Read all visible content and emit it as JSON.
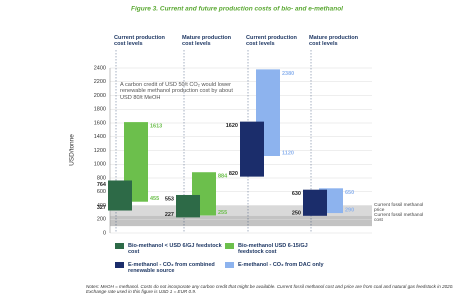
{
  "chart_data": {
    "type": "range-bar",
    "title": "Figure 3. Current and future production costs of bio- and e-methanol",
    "y_label": "USD/tonne",
    "categories": [
      "Current production cost levels",
      "Mature production cost levels",
      "Current production cost levels",
      "Mature production cost levels"
    ],
    "series": [
      {
        "name": "Bio-methanol < USD 6/GJ feedstock cost",
        "color": "#2d6a47",
        "low": [
          327,
          227,
          null,
          null
        ],
        "high": [
          764,
          553,
          null,
          null
        ]
      },
      {
        "name": "Bio-methanol USD 6-15/GJ feedstock cost",
        "color": "#6cbf4c",
        "low": [
          455,
          255,
          null,
          null
        ],
        "high": [
          1613,
          884,
          null,
          null
        ]
      },
      {
        "name": "E-methanol - CO₂ from combined renewable source",
        "color": "#1b2d6b",
        "low": [
          null,
          null,
          820,
          250
        ],
        "high": [
          null,
          null,
          1620,
          630
        ]
      },
      {
        "name": "E-methanol - CO₂ from DAC only",
        "color": "#8db3ee",
        "low": [
          null,
          null,
          1120,
          290
        ],
        "high": [
          null,
          null,
          2380,
          650
        ]
      }
    ],
    "bands": [
      {
        "name": "Current fossil methanol price",
        "color": "#c9c9c9",
        "range": [
          250,
          400
        ]
      },
      {
        "name": "Current fossil methanol cost",
        "color": "#a9a9a9",
        "range": [
          100,
          250
        ]
      }
    ],
    "annotation": "A carbon credit of USD 50/t CO₂ would lower renewable methanol production cost by about USD 80/t MeOH",
    "notes": "Notes: MeOH = methanol. Costs do not incorporate any carbon credit that might be available. Current fossil methanol cost and price are from coal and natural gas feedstock in 2020. Exchange rate used in this figure is USD 1 = EUR 0.9.",
    "ylim": [
      0,
      2400
    ],
    "yticks": [
      0,
      200,
      400,
      600,
      800,
      1000,
      1200,
      1400,
      1600,
      1800,
      2000,
      2200,
      2400
    ],
    "grid": true
  }
}
